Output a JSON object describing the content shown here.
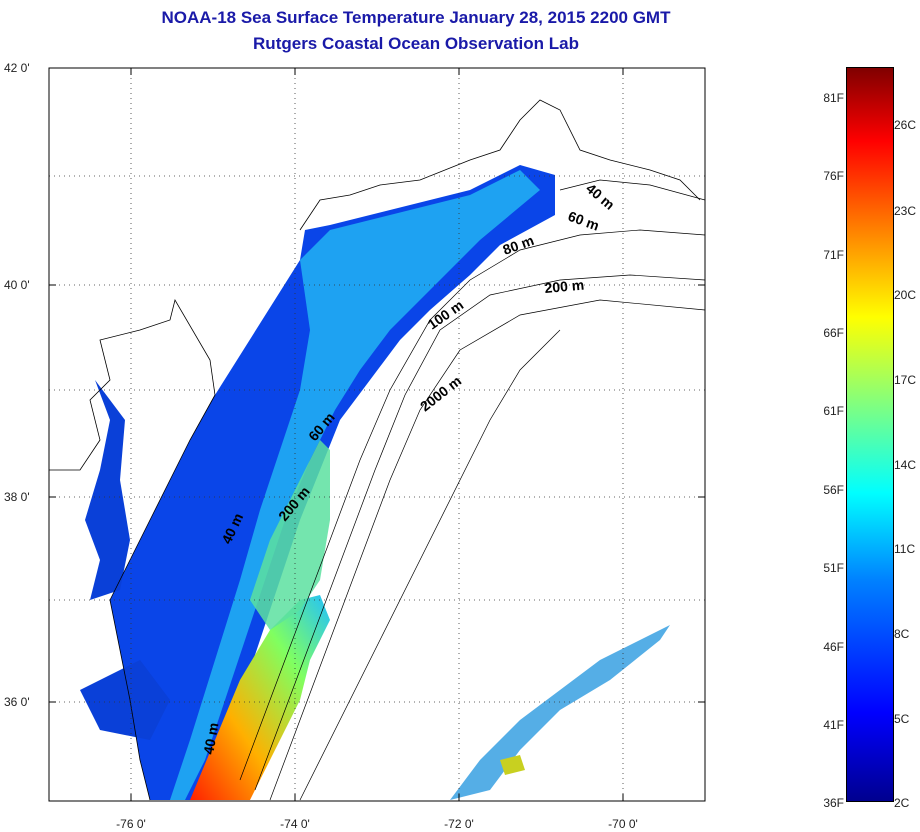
{
  "title": {
    "line1": "NOAA-18 Sea Surface Temperature January 28, 2015 2200 GMT",
    "line2": "Rutgers Coastal Ocean Observation Lab"
  },
  "axes": {
    "y_ticks": [
      "42 0'",
      "40 0'",
      "38 0'",
      "36 0'"
    ],
    "x_ticks": [
      "-76 0'",
      "-74 0'",
      "-72 0'",
      "-70 0'"
    ],
    "grid": "dotted"
  },
  "contour_labels": [
    "40 m",
    "60 m",
    "80 m",
    "200 m",
    "100 m",
    "2000 m",
    "60 m",
    "200 m",
    "40 m",
    "40 m"
  ],
  "colorbar": {
    "fahrenheit": [
      "81F",
      "76F",
      "71F",
      "66F",
      "61F",
      "56F",
      "51F",
      "46F",
      "41F",
      "36F"
    ],
    "celsius": [
      "26C",
      "23C",
      "20C",
      "17C",
      "14C",
      "11C",
      "8C",
      "5C",
      "2C"
    ],
    "colors": [
      "#00008f",
      "#0000ff",
      "#0080ff",
      "#00ffff",
      "#80ff80",
      "#ffff00",
      "#ff8000",
      "#ff0000",
      "#800000"
    ]
  }
}
